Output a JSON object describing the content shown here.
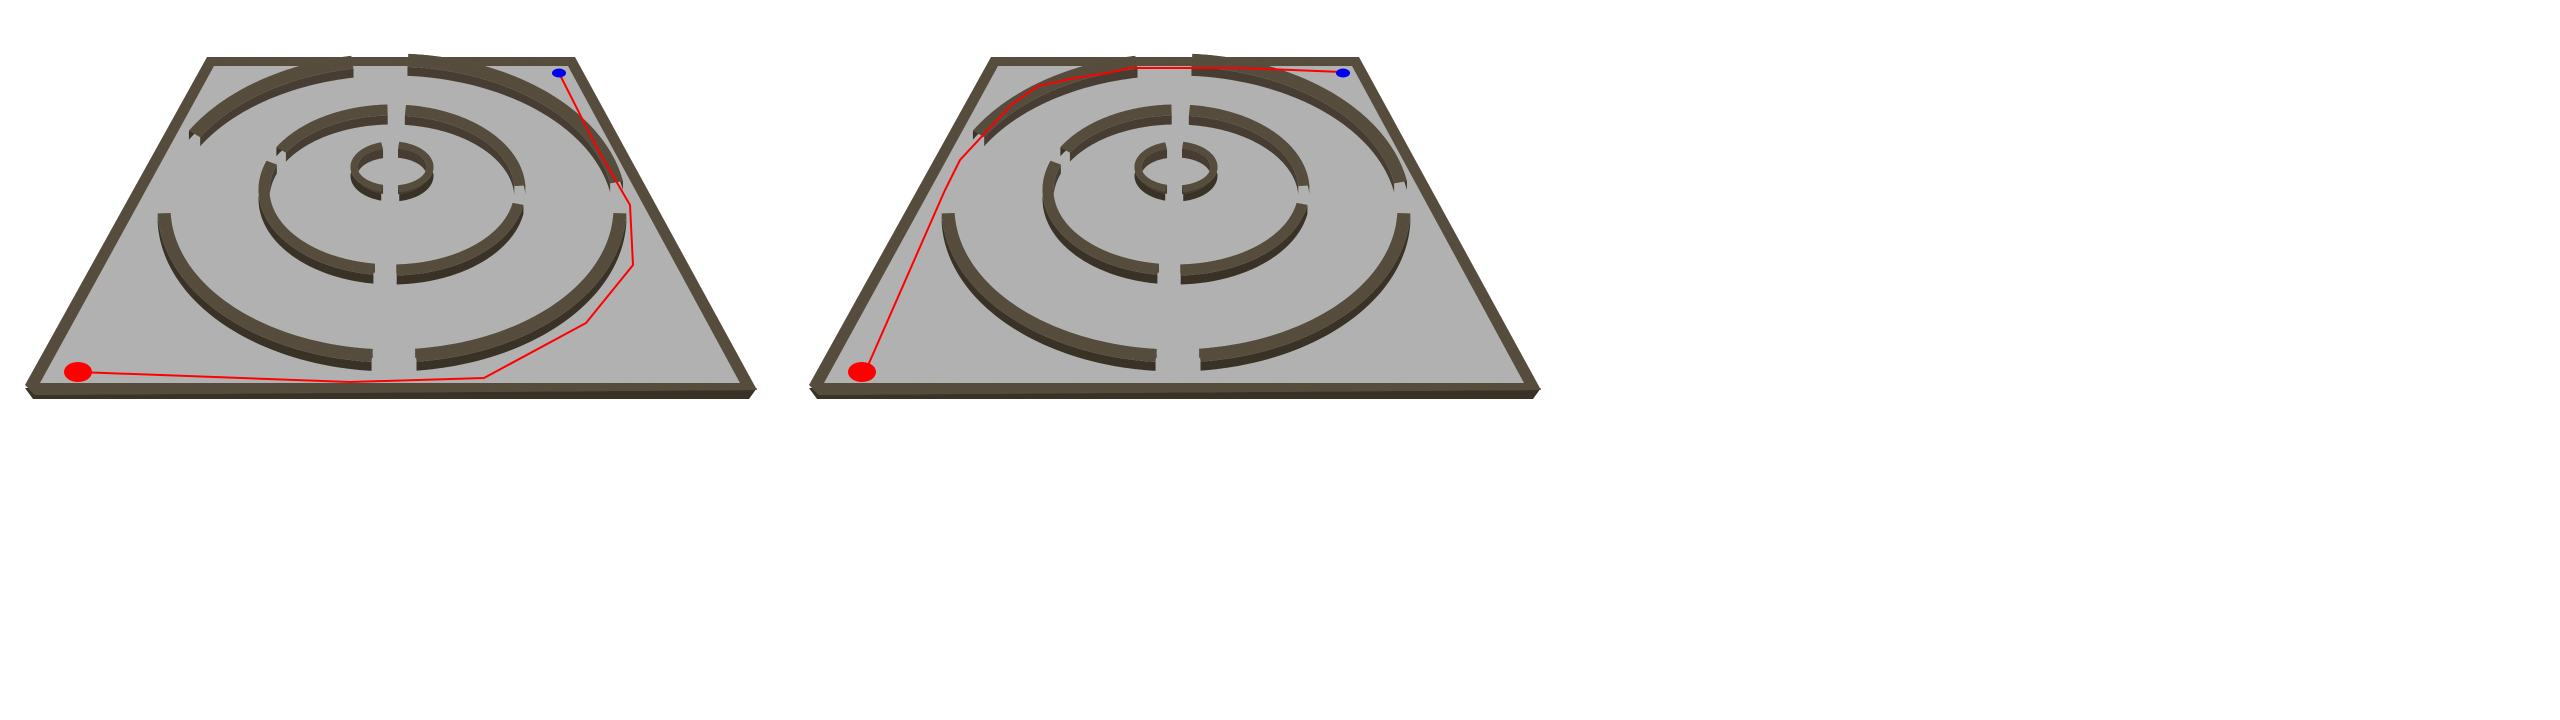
{
  "colors": {
    "background": "#ffffff",
    "floor": "#b1b1b1",
    "wall_top": "#5a5040",
    "wall_side": "#3c3428",
    "path": "#ff0000",
    "start_marker": "#ff0000",
    "goal_marker": "#0000ee"
  },
  "scene": {
    "views": [
      {
        "name": "maze-view-left",
        "path_name": "planned-path-left"
      },
      {
        "name": "maze-view-right",
        "path_name": "planned-path-right"
      }
    ],
    "walls": [
      {
        "name": "outer-border-wall"
      },
      {
        "name": "outer-ring-wall-upper-left"
      },
      {
        "name": "outer-ring-wall-top-right"
      },
      {
        "name": "outer-ring-wall-left-lower"
      },
      {
        "name": "outer-ring-wall-right-lower"
      },
      {
        "name": "middle-ring-wall-upper-left"
      },
      {
        "name": "middle-ring-wall-upper-right"
      },
      {
        "name": "middle-ring-wall-left"
      },
      {
        "name": "middle-ring-wall-right-lower"
      },
      {
        "name": "inner-ring-wall-left"
      },
      {
        "name": "inner-ring-wall-right"
      }
    ],
    "markers": [
      {
        "name": "start-marker",
        "color_key": "start_marker"
      },
      {
        "name": "goal-marker",
        "color_key": "goal_marker"
      }
    ]
  }
}
